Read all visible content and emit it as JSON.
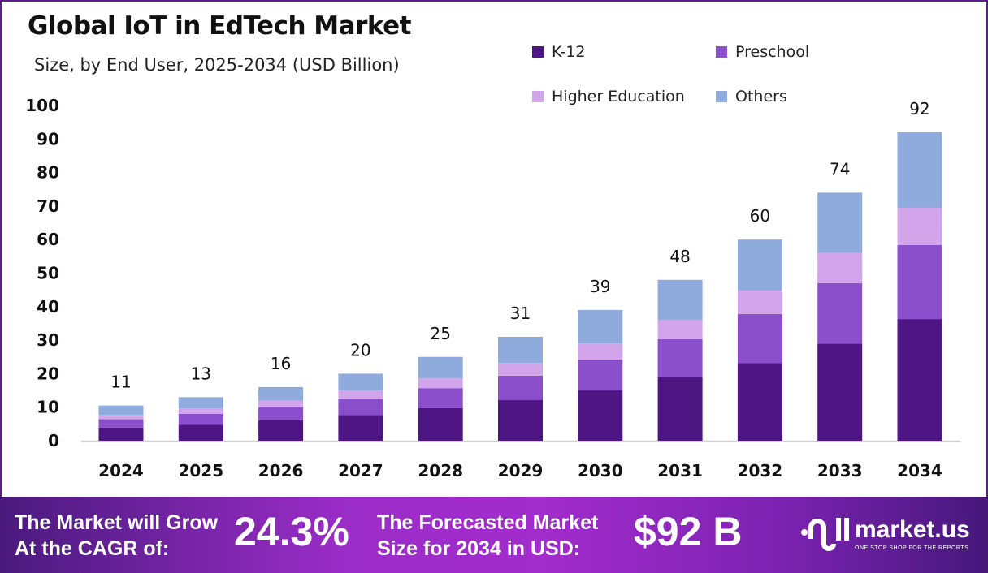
{
  "chart_data": {
    "type": "bar",
    "stacked": true,
    "title": "Global IoT in EdTech Market",
    "subtitle": "Size, by End User, 2025-2034 (USD Billion)",
    "categories": [
      "2024",
      "2025",
      "2026",
      "2027",
      "2028",
      "2029",
      "2030",
      "2031",
      "2032",
      "2033",
      "2034"
    ],
    "series": [
      {
        "name": "K-12",
        "color": "#4e1683",
        "values": [
          3.9,
          4.8,
          6.1,
          7.7,
          9.7,
          12.1,
          15.0,
          18.9,
          23.2,
          29.0,
          36.3
        ]
      },
      {
        "name": "Preschool",
        "color": "#8b4fcc",
        "values": [
          2.5,
          3.2,
          3.9,
          4.9,
          6.0,
          7.3,
          9.2,
          11.4,
          14.6,
          18.0,
          22.1
        ]
      },
      {
        "name": "Higher Education",
        "color": "#d2a5ea",
        "values": [
          1.3,
          1.6,
          2.0,
          2.4,
          2.9,
          3.8,
          4.8,
          5.7,
          7.0,
          9.0,
          11.1
        ]
      },
      {
        "name": "Others",
        "color": "#8faadc",
        "values": [
          2.8,
          3.4,
          4.0,
          5.0,
          6.4,
          7.8,
          10.0,
          12.0,
          15.2,
          18.0,
          22.5
        ]
      }
    ],
    "totals": [
      "11",
      "13",
      "16",
      "20",
      "25",
      "31",
      "39",
      "48",
      "60",
      "74",
      "92"
    ],
    "ylim": [
      0,
      100
    ],
    "yticks": [
      "0",
      "10",
      "20",
      "30",
      "40",
      "50",
      "60",
      "70",
      "80",
      "90",
      "100"
    ],
    "grid": false,
    "legend": "top-right"
  },
  "footer": {
    "cagr_label_1": "The Market will Grow",
    "cagr_label_2": "At the CAGR of:",
    "cagr_value": "24.3%",
    "forecast_label_1": "The Forecasted Market",
    "forecast_label_2": "Size for 2034 in USD:",
    "forecast_value": "$92 B",
    "logo_name": "market.us",
    "logo_tagline": "ONE STOP SHOP FOR THE REPORTS"
  }
}
